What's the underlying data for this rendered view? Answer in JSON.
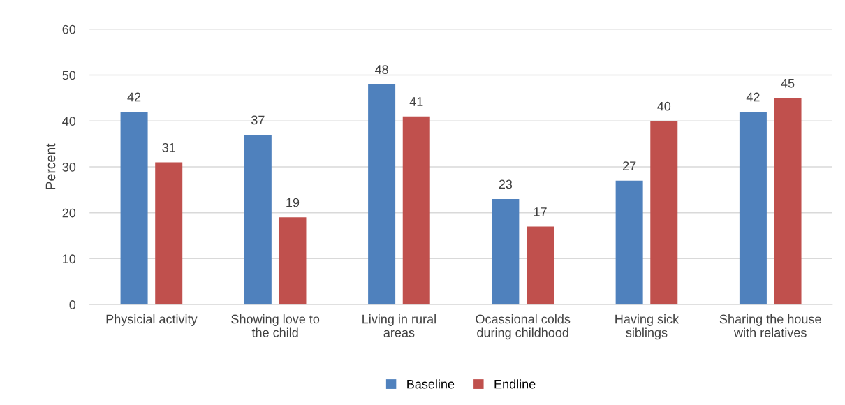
{
  "chart_data": {
    "type": "bar",
    "ylabel": "Percent",
    "categories": [
      "Physicial activity",
      "Showing love to\nthe child",
      "Living in rural\nareas",
      "Ocassional colds\nduring childhood",
      "Having sick\nsiblings",
      "Sharing the house\nwith relatives"
    ],
    "series": [
      {
        "name": "Baseline",
        "color": "#4f81bd",
        "values": [
          42,
          37,
          48,
          23,
          27,
          42
        ]
      },
      {
        "name": "Endline",
        "color": "#c0504d",
        "values": [
          31,
          19,
          41,
          17,
          40,
          45
        ]
      }
    ],
    "ylim": [
      0,
      60
    ],
    "yticks": [
      0,
      10,
      20,
      30,
      40,
      50,
      60
    ],
    "grid": "y",
    "legend": "bottom",
    "data_labels": true
  }
}
